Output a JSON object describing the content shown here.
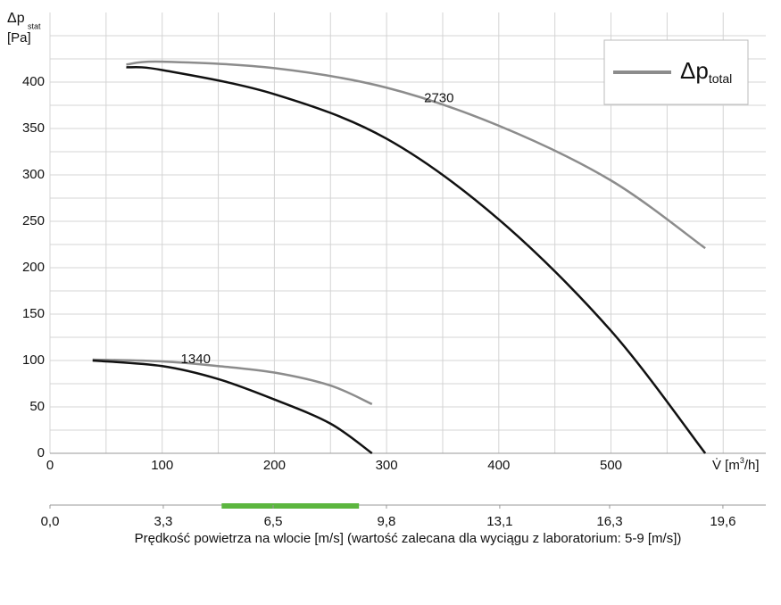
{
  "chart_data": {
    "type": "fan-curve",
    "y_label": "Δp",
    "y_label_sub": "stat",
    "y_unit": "[Pa]",
    "x_label": "V̇ [m",
    "x_label_sup": "3",
    "x_label_end": "/h]",
    "legend_main": "Δp",
    "legend_sub": "total",
    "static_color": "#111111",
    "total_color": "#8c8c8c",
    "xlim": [
      0,
      638
    ],
    "ylim": [
      0,
      475
    ],
    "xticks": [
      0,
      100,
      200,
      300,
      400,
      500
    ],
    "yticks": [
      0,
      50,
      100,
      150,
      200,
      250,
      300,
      350,
      400
    ],
    "minor_xgrid": [
      50,
      150,
      250,
      350,
      450,
      550,
      600
    ],
    "minor_ygrid": [
      25,
      75,
      125,
      175,
      225,
      275,
      325,
      375,
      425,
      450
    ],
    "curves": [
      {
        "label": "2730",
        "x": [
          68,
          100,
          200,
          300,
          400,
          500,
          584
        ],
        "static": [
          416,
          413,
          387,
          339,
          252,
          132,
          0
        ],
        "total": [
          419,
          422,
          415,
          394,
          353,
          294,
          221
        ]
      },
      {
        "label": "1340",
        "x": [
          38,
          100,
          150,
          200,
          250,
          287
        ],
        "static": [
          100,
          94,
          80,
          58,
          32,
          0
        ],
        "total": [
          101,
          99,
          94,
          87,
          73,
          53
        ]
      }
    ],
    "velocity_axis": {
      "xlim": [
        0,
        20.85
      ],
      "xticks": [
        {
          "value": 0,
          "label": "0,0"
        },
        {
          "value": 3.3,
          "label": "3,3"
        },
        {
          "value": 6.5,
          "label": "6,5"
        },
        {
          "value": 9.8,
          "label": "9,8"
        },
        {
          "value": 13.1,
          "label": "13,1"
        },
        {
          "value": 16.3,
          "label": "16,3"
        },
        {
          "value": 19.6,
          "label": "19,6"
        }
      ],
      "recommended_range": [
        5,
        9
      ],
      "recommended_color": "#5cb63f",
      "title": "Prędkość powietrza na wlocie [m/s] (wartość zalecana dla wyciągu z laboratorium: 5-9 [m/s])"
    }
  }
}
